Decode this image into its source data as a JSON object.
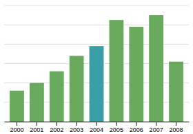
{
  "chart_data": {
    "type": "bar",
    "categories": [
      "2000",
      "2001",
      "2002",
      "2003",
      "2004",
      "2005",
      "2006",
      "2007",
      "2008"
    ],
    "values": [
      3.2,
      4.0,
      5.2,
      6.8,
      7.8,
      10.5,
      9.8,
      11.0,
      6.2
    ],
    "colors": [
      "#6aaa5e",
      "#6aaa5e",
      "#6aaa5e",
      "#6aaa5e",
      "#3b9da5",
      "#6aaa5e",
      "#6aaa5e",
      "#6aaa5e",
      "#6aaa5e"
    ],
    "ylim": [
      0,
      12
    ],
    "yticks": [
      0,
      2,
      4,
      6,
      8,
      10,
      12
    ],
    "grid": true,
    "tick_labels": "x"
  }
}
